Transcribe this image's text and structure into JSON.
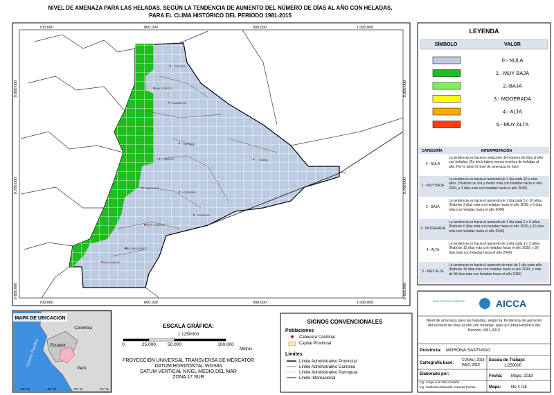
{
  "title": [
    "NIVEL DE AMENAZA PARA LAS HELADAS, SEGÚN LA TENDENCIA DE AUMENTO DEL NÚMERO DE DÍAS AL AÑO CON HELADAS,",
    "PARA EL CLIMA HISTÓRICO DEL PERIODO 1981-2015"
  ],
  "map": {
    "x_labels": [
      "700.000",
      "800.000",
      "900.000",
      "1.000.000"
    ],
    "y_labels": [
      "9.800.000",
      "9.700.000",
      "9.600.000"
    ],
    "places": [
      "PALORA",
      "PABLO SEXTO",
      "HUAMBOYA",
      "MORONA",
      "SUCUA",
      "TAISHA",
      "SANTIAGO",
      "LOGROÑO",
      "LIMON INDANZA",
      "TIWINTZA",
      "SAN JUAN BOSCO",
      "GUALAQUIZA"
    ]
  },
  "legend": {
    "title": "LEYENDA",
    "headers": [
      "SÍMBOLO",
      "VALOR"
    ],
    "items": [
      {
        "color": "#bccbe0",
        "label": "0.- NULA"
      },
      {
        "color": "#1fbd1f",
        "label": "1.- MUY BAJA"
      },
      {
        "color": "#7cf25a",
        "label": "2.-BAJA"
      },
      {
        "color": "#ffff00",
        "label": "3.- MODERADA"
      },
      {
        "color": "#ffaa00",
        "label": "4.- ALTA"
      },
      {
        "color": "#ff3b10",
        "label": "5.- MUY ALTA"
      }
    ]
  },
  "interpretation": {
    "headers": [
      "CATEGORÍA",
      "INTERPRETACIÓN"
    ],
    "rows": [
      {
        "category": "0 - NULA",
        "text": "La tendencia es hacia la reducción del número de días al año con heladas. (Es decir habrá menos eventos de heladas al año. Por lo tanto el nivel de amenaza es nulo)"
      },
      {
        "category": "1 - MUY BAJA",
        "text": "La tendencia es hacia el aumento de 1 día cada 10 o más años. (Habrían un día y medio más con heladas hacia el año 2030, y 3 días más con heladas hacia el año 2040)"
      },
      {
        "category": "2 - BAJA",
        "text": "La tendencia es hacia el aumento de 1 día cada 5 o 10 años. (Habrían 3 días más con heladas hacia el año 2030, y 6 días más con heladas hacia el año 2040)"
      },
      {
        "category": "3 - MODERADA",
        "text": "La tendencia es hacia el aumento de 1 día cada 2 o 5 años. (Habrían 6 días más con heladas hacia el año 2030, y 15 días más con heladas hacia el año 2040)"
      },
      {
        "category": "4 - ALTA",
        "text": "La tendencia es hacia el aumento de 1 día cada 1 o 2 años. (Habrían 15 días más con heladas hacia el año 2030, y 30 días más con heladas hacia el año 2040)"
      },
      {
        "category": "5 - MUY ALTA",
        "text": "La tendencia es hacia el aumento de más de 1 día cada año. (Habrían 30 días más con heladas hacia el año 2030, y más de 30 días más con heladas hacia el año 2040)"
      }
    ]
  },
  "location_map": {
    "title": "MAPA DE UBICACIÓN",
    "countries": [
      "Colombia",
      "Ecuador",
      "Perú"
    ],
    "ocean": "Océano Pacífico",
    "lon_labels": [
      "-82° W",
      "-80° W",
      "-78° W",
      "-76° W"
    ]
  },
  "scale": {
    "title": "ESCALA GRÁFICA:",
    "ratio": "1:1250000",
    "ticks": [
      "0",
      "25.000",
      "50.000",
      "100.000"
    ],
    "unit": "Metros",
    "projection": [
      "PROYECCIÓN UNIVERSAL TRANSVERSA DE MERCATOR",
      "DATUM HORIZONTAL WGS84",
      "DATUM VERTICAL NIVEL MEDIO DEL MAR",
      "ZONA 17 SUR"
    ]
  },
  "symbols": {
    "title": "SIGNOS CONVENCIONALES",
    "populations_heading": "Poblaciones",
    "populations": [
      "Cabecera Cantonal",
      "Capital Provincial"
    ],
    "limits_heading": "Límites",
    "limits": [
      "Límite Administrativo Provincial",
      "Límite Administrativo Cantonal",
      "Límite Administrativo Parroquial",
      "Límite Internacional"
    ]
  },
  "info": {
    "ministry": "MINISTERIO DEL AMBIENTE",
    "logo": "AICCA",
    "description": "Nivel de amenaza para las heladas, según la Tendencia de aumento del número de días al año con heladas, para el Clima Histórico del Periodo 1981-2015",
    "province": {
      "label": "Provincia:",
      "value": "MORONA SANTIAGO"
    },
    "base": {
      "label": "Cartografía base:",
      "value": [
        "CONALI, 2018",
        "INEC, 2016"
      ]
    },
    "scale": {
      "label": "Escala de Trabajo:",
      "value": "1:250000"
    },
    "author": {
      "label": "Elaborado por:",
      "value": [
        "Ing. Jorge Luis Villa Cedeño",
        "Ing. Guillermo Eduardo Armenta Porras"
      ]
    },
    "date": {
      "label": "Fecha:",
      "value": "Mayo, 2019"
    },
    "map_no": {
      "label": "Mapa:",
      "value": "No 4 /18"
    }
  }
}
